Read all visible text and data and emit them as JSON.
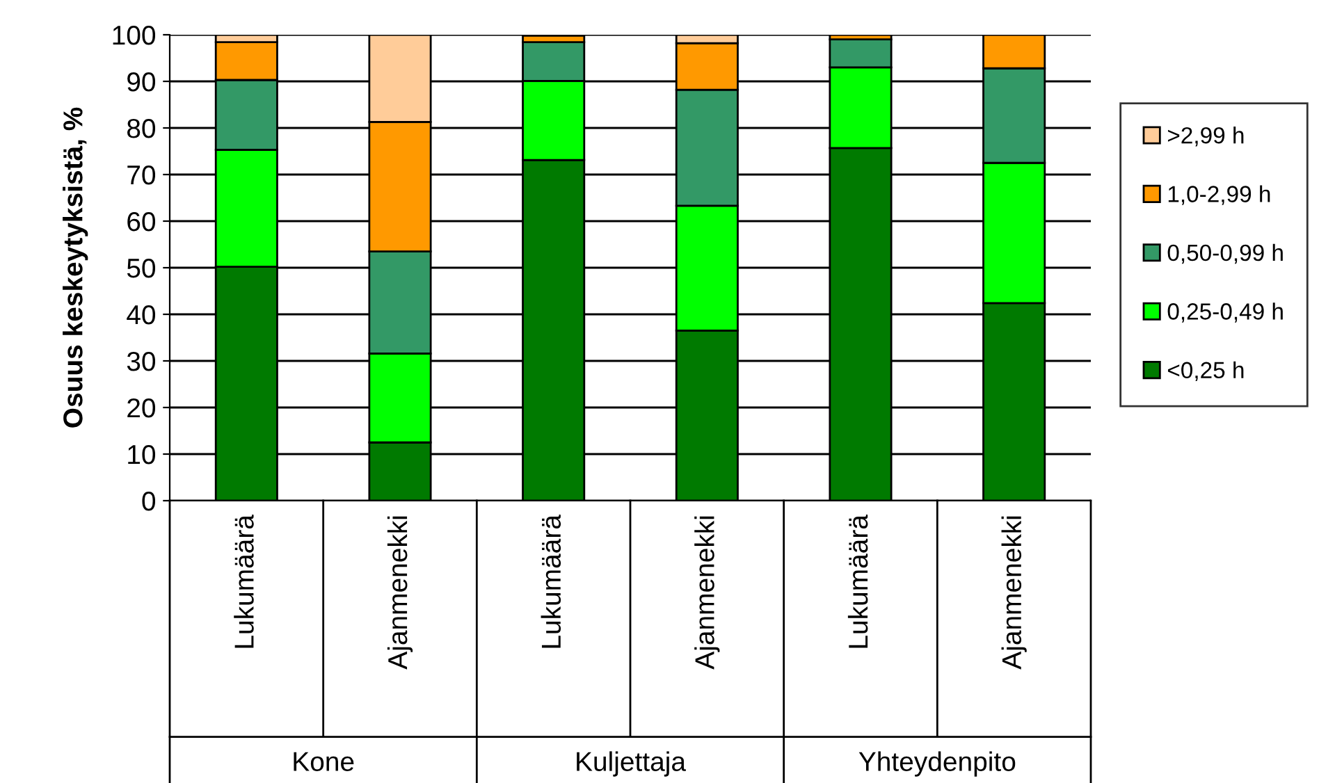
{
  "chart_data": {
    "type": "bar",
    "stacked": true,
    "ylabel": "Osuus keskeytyksistä, %",
    "categories": [
      "Lukumäärä",
      "Ajanmenekki",
      "Lukumäärä",
      "Ajanmenekki",
      "Lukumäärä",
      "Ajanmenekki"
    ],
    "series": [
      {
        "name": "<0,25 h",
        "color": "#007a00",
        "values": [
          50.2,
          12.5,
          73.1,
          36.5,
          75.7,
          42.4
        ]
      },
      {
        "name": "0,25-0,49 h",
        "color": "#00ff00",
        "values": [
          25.1,
          19.1,
          17.0,
          26.8,
          17.3,
          30.1
        ]
      },
      {
        "name": "0,50-0,99 h",
        "color": "#339966",
        "values": [
          15.0,
          21.9,
          8.3,
          24.9,
          6.0,
          20.3
        ]
      },
      {
        "name": "1,0-2,99 h",
        "color": "#ff9900",
        "values": [
          8.1,
          27.8,
          1.4,
          10.0,
          1.0,
          7.2
        ]
      },
      {
        "name": ">2,99 h",
        "color": "#ffcc99",
        "values": [
          1.6,
          18.7,
          null,
          1.8,
          0,
          0
        ]
      }
    ],
    "ylim": [
      0,
      100
    ],
    "yticks": [
      0,
      10,
      20,
      30,
      40,
      50,
      60,
      70,
      80,
      90,
      100
    ],
    "grid": "y",
    "legend": "right",
    "annotations": [
      "Kone",
      "Kuljettaja",
      "Yhteydenpito"
    ]
  }
}
